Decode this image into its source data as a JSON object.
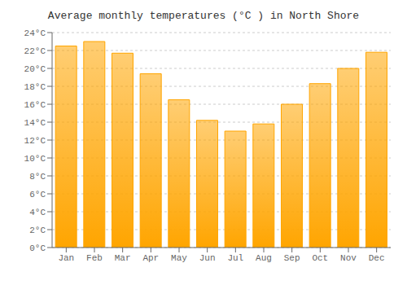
{
  "chart_data": {
    "type": "bar",
    "title": "Average monthly temperatures (°C ) in North Shore",
    "categories": [
      "Jan",
      "Feb",
      "Mar",
      "Apr",
      "May",
      "Jun",
      "Jul",
      "Aug",
      "Sep",
      "Oct",
      "Nov",
      "Dec"
    ],
    "values": [
      22.5,
      23.0,
      21.7,
      19.4,
      16.5,
      14.2,
      13.0,
      13.8,
      16.0,
      18.3,
      20.0,
      21.8
    ],
    "color": "#FFA500",
    "ylim": [
      0,
      24
    ],
    "yticks": [
      {
        "value": 0,
        "label": "0°C"
      },
      {
        "value": 2,
        "label": "2°C"
      },
      {
        "value": 4,
        "label": "4°C"
      },
      {
        "value": 6,
        "label": "6°C"
      },
      {
        "value": 8,
        "label": "8°C"
      },
      {
        "value": 10,
        "label": "10°C"
      },
      {
        "value": 12,
        "label": "12°C"
      },
      {
        "value": 14,
        "label": "14°C"
      },
      {
        "value": 16,
        "label": "16°C"
      },
      {
        "value": 18,
        "label": "18°C"
      },
      {
        "value": 20,
        "label": "20°C"
      },
      {
        "value": 22,
        "label": "22°C"
      },
      {
        "value": 24,
        "label": "24°C"
      }
    ],
    "grid": true
  }
}
